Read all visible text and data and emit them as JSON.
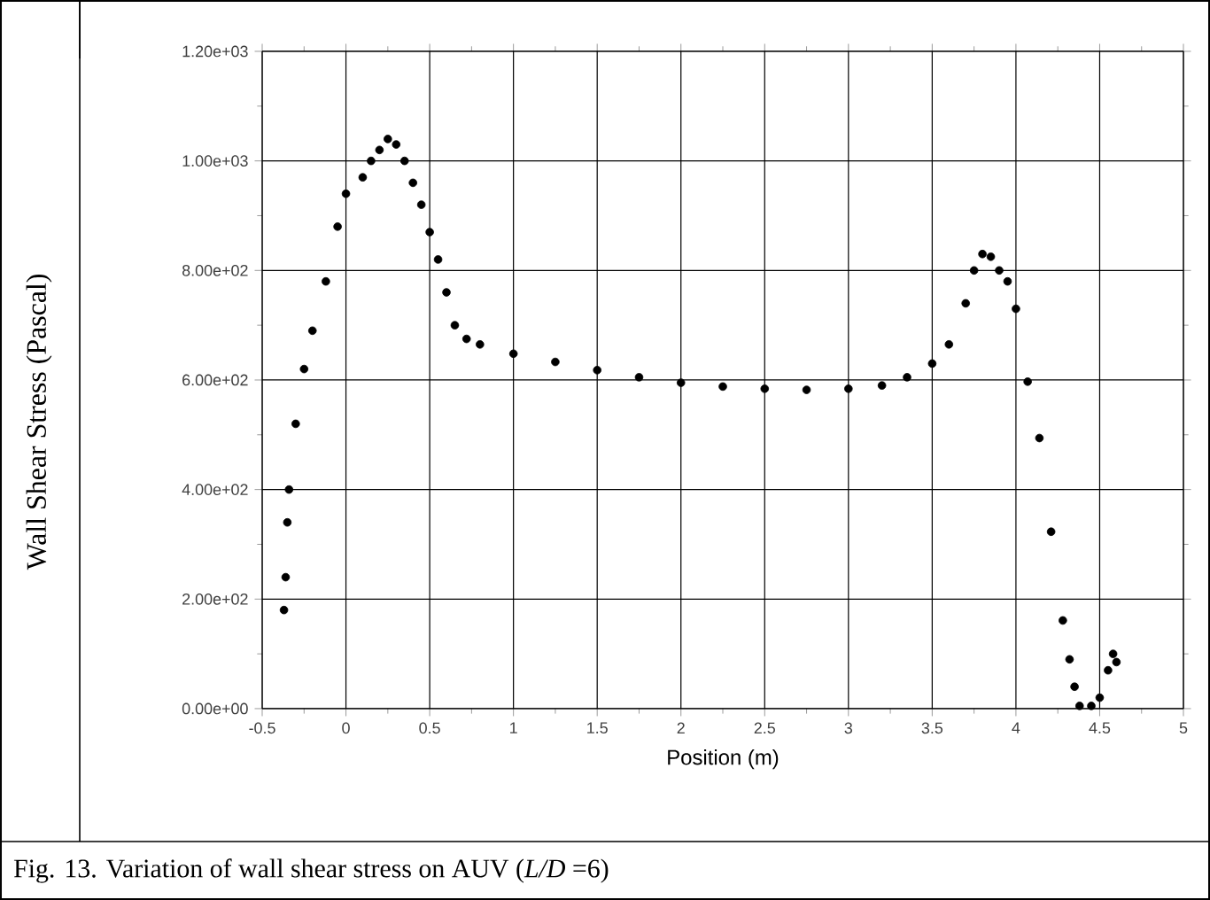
{
  "chart_data": {
    "type": "scatter",
    "xlabel": "Position (m)",
    "ylabel": "Wall Shear Stress (Pascal)",
    "annotations": [
      "Fig. 13. Variation of wall shear stress on AUV (*L/D* =6)"
    ],
    "series": [
      {
        "color": "#000000",
        "x": [
          -0.37,
          -0.36,
          -0.35,
          -0.34,
          -0.3,
          -0.25,
          -0.2,
          -0.12,
          -0.05,
          0,
          0.1,
          0.15,
          0.2,
          0.25,
          0.3,
          0.35,
          0.4,
          0.45,
          0.5,
          0.55,
          0.6,
          0.65,
          0.72,
          0.8,
          1.0,
          1.25,
          1.5,
          1.75,
          2.0,
          2.25,
          2.5,
          2.75,
          3.0,
          3.2,
          3.35,
          3.5,
          3.6,
          3.7,
          3.75,
          3.8,
          3.85,
          3.9,
          3.95,
          4.0,
          4.07,
          4.14,
          4.21,
          4.28,
          4.32,
          4.35,
          4.38,
          4.45,
          4.5,
          4.55,
          4.58,
          4.6
        ],
        "values": [
          180,
          240,
          340,
          400,
          520,
          620,
          690,
          780,
          880,
          940,
          970,
          1000,
          1020,
          1040,
          1030,
          1000,
          960,
          920,
          870,
          820,
          760,
          700,
          675,
          665,
          648,
          633,
          618,
          605,
          595,
          588,
          584,
          582,
          584,
          590,
          605,
          630,
          665,
          740,
          800,
          830,
          825,
          800,
          780,
          730,
          597,
          494,
          323,
          161,
          90,
          40,
          5,
          5,
          20,
          70,
          100,
          85
        ]
      }
    ],
    "xlim": [
      -0.5,
      5
    ],
    "ylim": [
      0,
      1200
    ],
    "xticks": [
      -0.5,
      0,
      0.5,
      1,
      1.5,
      2,
      2.5,
      3,
      3.5,
      4,
      4.5,
      5
    ],
    "yticks": [
      {
        "value": 0,
        "label": "0.00e+00"
      },
      {
        "value": 200,
        "label": "2.00e+02"
      },
      {
        "value": 400,
        "label": "4.00e+02"
      },
      {
        "value": 600,
        "label": "6.00e+02"
      },
      {
        "value": 800,
        "label": "8.00e+02"
      },
      {
        "value": 1000,
        "label": "1.00e+03"
      },
      {
        "value": 1200,
        "label": "1.20e+03"
      }
    ],
    "grid": true,
    "marker": "circle"
  }
}
